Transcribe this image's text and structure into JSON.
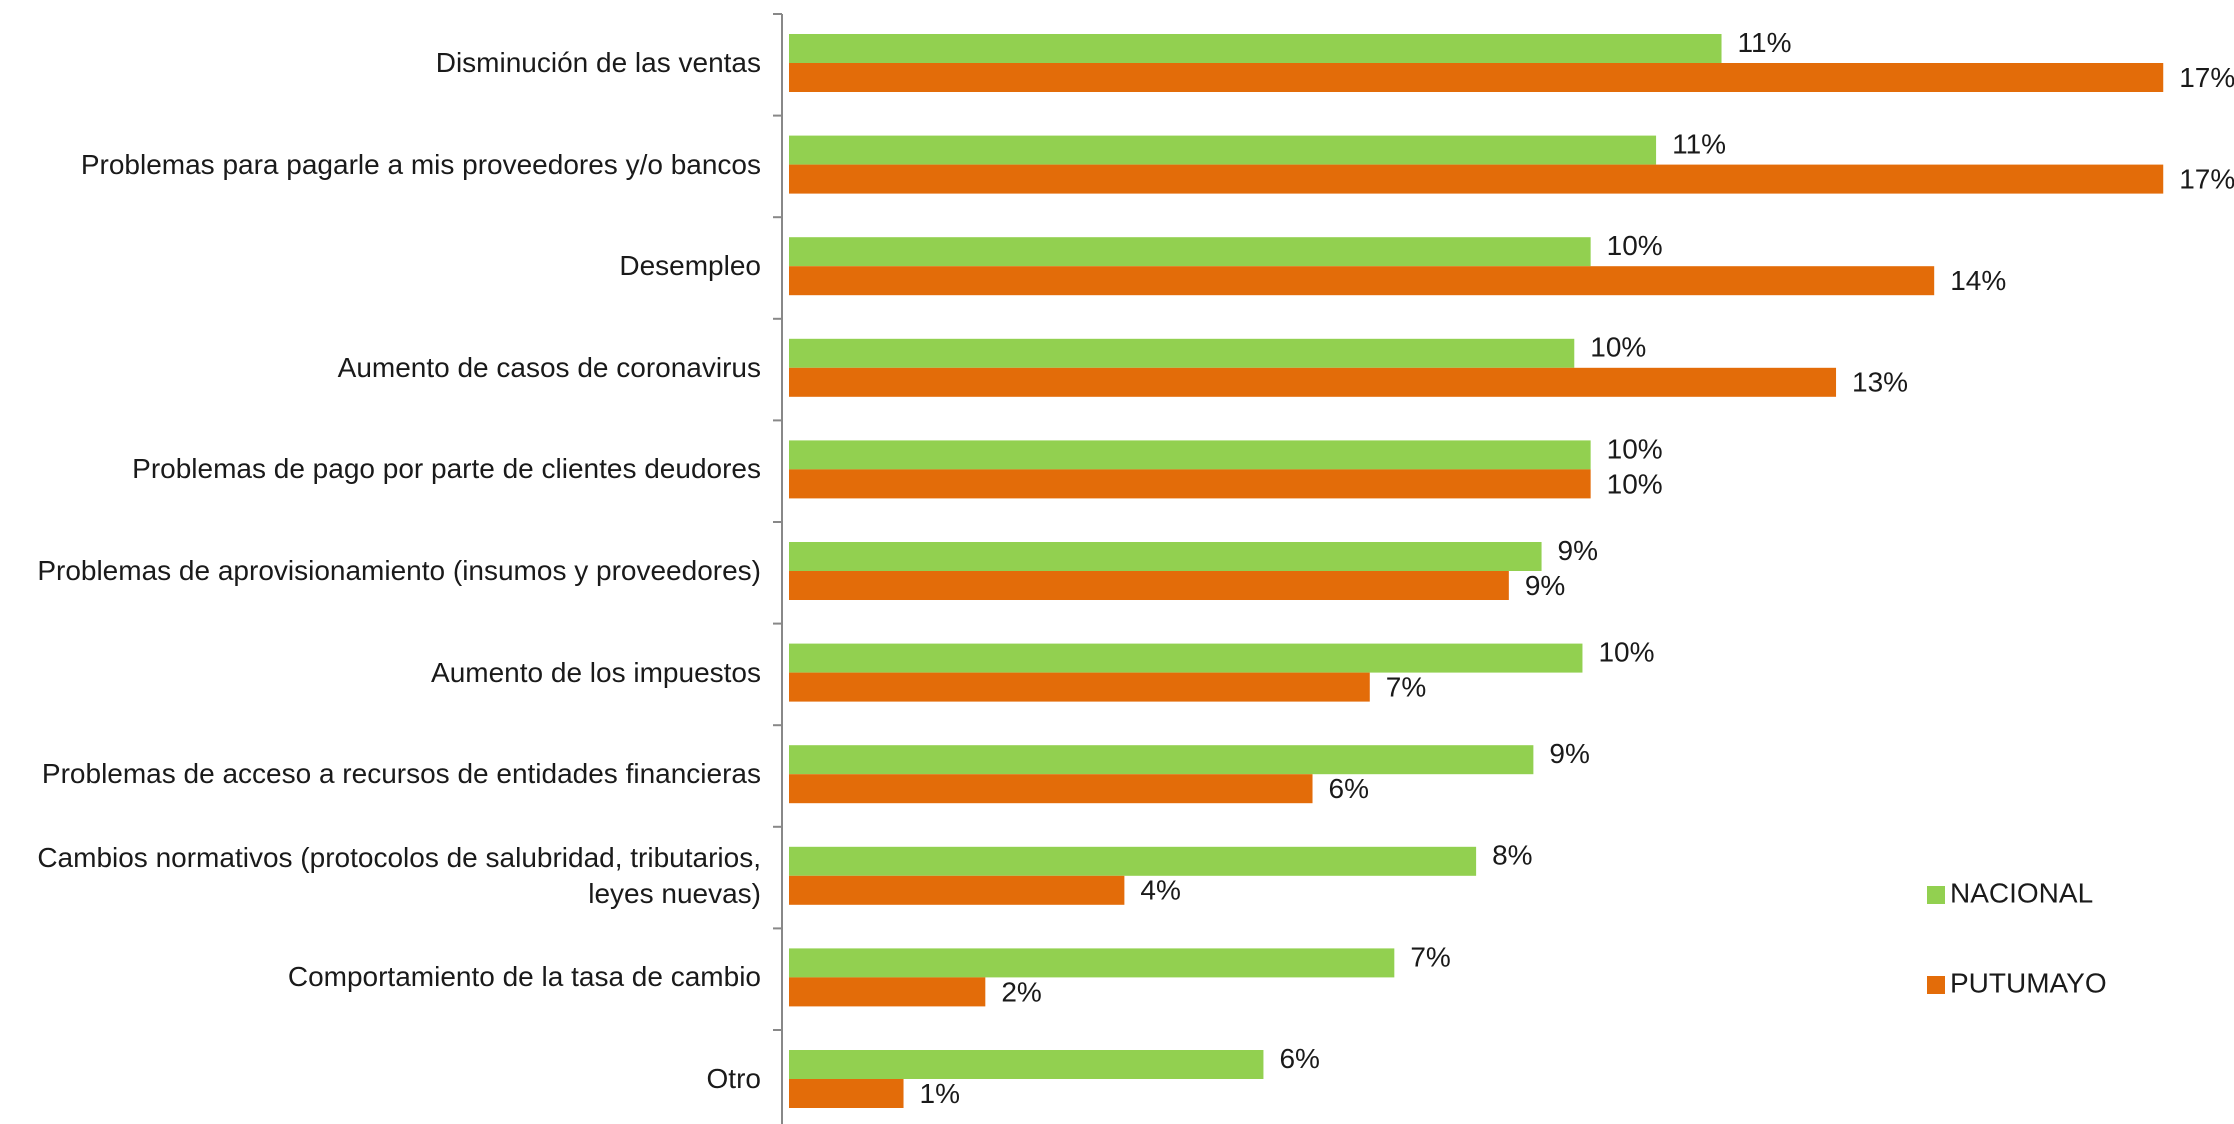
{
  "chart_data": {
    "type": "bar",
    "orientation": "horizontal",
    "categories": [
      "Disminución de las ventas",
      "Problemas para pagarle a mis proveedores y/o bancos",
      "Desempleo",
      "Aumento de casos de coronavirus",
      "Problemas de pago por parte de clientes deudores",
      "Problemas de aprovisionamiento (insumos y proveedores)",
      "Aumento de los impuestos",
      "Problemas de acceso a recursos de entidades financieras",
      "Cambios normativos (protocolos de salubridad, tributarios, leyes nuevas)",
      "Comportamiento de la tasa de cambio",
      "Otro"
    ],
    "series": [
      {
        "name": "NACIONAL",
        "color": "#92d050",
        "values": [
          11.4,
          10.6,
          9.8,
          9.6,
          9.8,
          9.2,
          9.7,
          9.1,
          8.4,
          7.4,
          5.8
        ],
        "value_labels": [
          "11%",
          "11%",
          "10%",
          "10%",
          "10%",
          "9%",
          "10%",
          "9%",
          "8%",
          "7%",
          "6%"
        ]
      },
      {
        "name": "PUTUMAYO",
        "color": "#e36c09",
        "values": [
          16.8,
          16.8,
          14.0,
          12.8,
          9.8,
          8.8,
          7.1,
          6.4,
          4.1,
          2.4,
          1.4
        ],
        "value_labels": [
          "17%",
          "17%",
          "14%",
          "13%",
          "10%",
          "9%",
          "7%",
          "6%",
          "4%",
          "2%",
          "1%"
        ]
      }
    ],
    "legend": "right"
  }
}
